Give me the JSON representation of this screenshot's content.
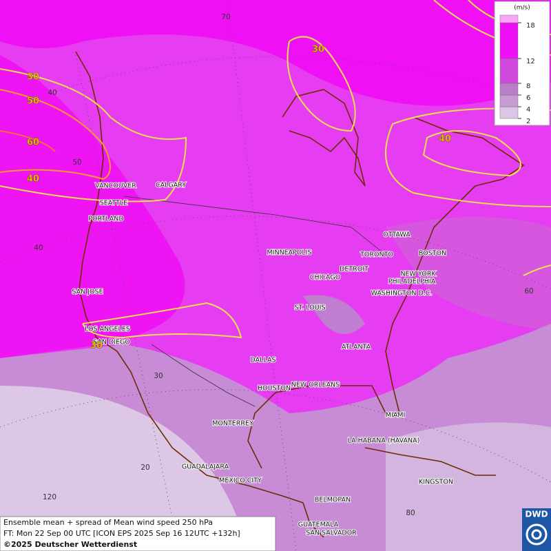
{
  "map": {
    "cities": [
      "VANCOUVER",
      "CALGARY",
      "SEATTLE",
      "PORTLAND",
      "SAN JOSE",
      "LOS ANGELES",
      "SAN DIEGO",
      "MINNEAPOLIS",
      "CHICAGO",
      "DETROIT",
      "TORONTO",
      "OTTAWA",
      "BOSTON",
      "NEW YORK",
      "PHILADELPHIA",
      "WASHINGTON D.C.",
      "ST. LOUIS",
      "ATLANTA",
      "DALLAS",
      "HOUSTON",
      "NEW ORLEANS",
      "MIAMI",
      "MONTERREY",
      "LA HABANA (HAVANA)",
      "GUADALAJARA",
      "MEXICO CITY",
      "KINGSTON",
      "BELMOPAN",
      "GUATEMALA",
      "SAN SALVADOR"
    ],
    "contour_labels": [
      30,
      50,
      60,
      40,
      30,
      40,
      30
    ],
    "graticule_labels": [
      70,
      40,
      50,
      40,
      60,
      30,
      20,
      120,
      80
    ]
  },
  "legend": {
    "unit": "(m/s)",
    "ticks": [
      2,
      4,
      6,
      8,
      12,
      18
    ],
    "colors": [
      "#dcc6e6",
      "#c79bd3",
      "#b97dc9",
      "#d048dc",
      "#ee10f4",
      "#f6a6f4"
    ]
  },
  "caption": [
    "Ensemble mean + spread of Mean wind speed 250 hPa",
    "FT: Mon 22 Sep 00 UTC [ICON EPS 2025 Sep 16 12UTC +132h]",
    "©2025 Deutscher Wetterdienst"
  ],
  "logo": "DWD"
}
